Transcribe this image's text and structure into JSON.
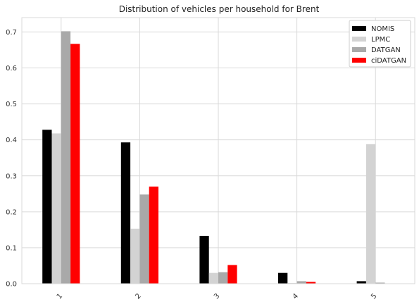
{
  "chart_data": {
    "type": "bar",
    "title": "Distribution of vehicles per household for Brent",
    "xlabel": "",
    "ylabel": "",
    "categories": [
      "1",
      "2",
      "3",
      "4",
      "5"
    ],
    "ylim": [
      0,
      0.74
    ],
    "yticks": [
      "0.0",
      "0.1",
      "0.2",
      "0.3",
      "0.4",
      "0.5",
      "0.6",
      "0.7"
    ],
    "grid": true,
    "legend_position": "top-right",
    "series": [
      {
        "name": "NOMIS",
        "color": "#000000",
        "values": [
          0.428,
          0.393,
          0.133,
          0.03,
          0.007
        ]
      },
      {
        "name": "LPMC",
        "color": "#d3d3d3",
        "values": [
          0.418,
          0.153,
          0.03,
          0.002,
          0.388
        ]
      },
      {
        "name": "DATGAN",
        "color": "#a9a9a9",
        "values": [
          0.702,
          0.248,
          0.032,
          0.007,
          0.003
        ]
      },
      {
        "name": "ciDATGAN",
        "color": "#ff0000",
        "values": [
          0.667,
          0.27,
          0.052,
          0.005,
          0.0
        ]
      }
    ]
  }
}
